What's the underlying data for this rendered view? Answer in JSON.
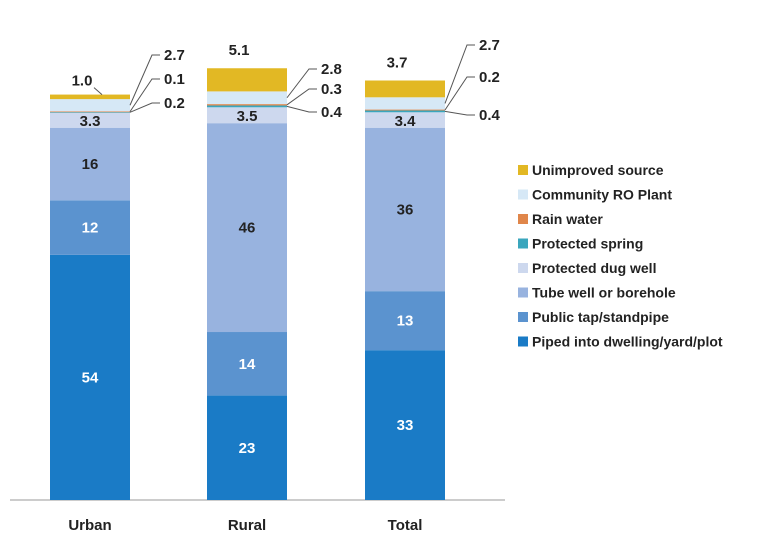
{
  "chart_data": {
    "type": "bar",
    "stacked": true,
    "percent": true,
    "title": "",
    "xlabel": "",
    "ylabel": "",
    "ylim": [
      0,
      100
    ],
    "grid": false,
    "legend_position": "right",
    "categories": [
      "Urban",
      "Rural",
      "Total"
    ],
    "series": [
      {
        "name": "Piped into dwelling/yard/plot",
        "color": "#1a7bc6",
        "values": [
          54,
          23,
          33
        ],
        "labels": [
          "54",
          "23",
          "33"
        ]
      },
      {
        "name": "Public tap/standpipe",
        "color": "#5b93cf",
        "values": [
          12,
          14,
          13
        ],
        "labels": [
          "12",
          "14",
          "13"
        ]
      },
      {
        "name": "Tube well or borehole",
        "color": "#98b3df",
        "values": [
          16,
          46,
          36
        ],
        "labels": [
          "16",
          "46",
          "36"
        ]
      },
      {
        "name": "Protected dug well",
        "color": "#cdd8ee",
        "values": [
          3.3,
          3.5,
          3.4
        ],
        "labels": [
          "3.3",
          "3.5",
          "3.4"
        ]
      },
      {
        "name": "Protected spring",
        "color": "#3aa6bd",
        "values": [
          0.2,
          0.4,
          0.4
        ],
        "labels": [
          "0.2",
          "0.4",
          "0.4"
        ]
      },
      {
        "name": "Rain water",
        "color": "#e0864a",
        "values": [
          0.1,
          0.3,
          0.2
        ],
        "labels": [
          "0.1",
          "0.3",
          "0.2"
        ]
      },
      {
        "name": "Community RO Plant",
        "color": "#d6e8f6",
        "values": [
          2.7,
          2.8,
          2.7
        ],
        "labels": [
          "2.7",
          "2.8",
          "2.7"
        ]
      },
      {
        "name": "Unimproved source",
        "color": "#e2b824",
        "values": [
          1.0,
          5.1,
          3.7
        ],
        "labels": [
          "1.0",
          "5.1",
          "3.7"
        ]
      }
    ]
  }
}
